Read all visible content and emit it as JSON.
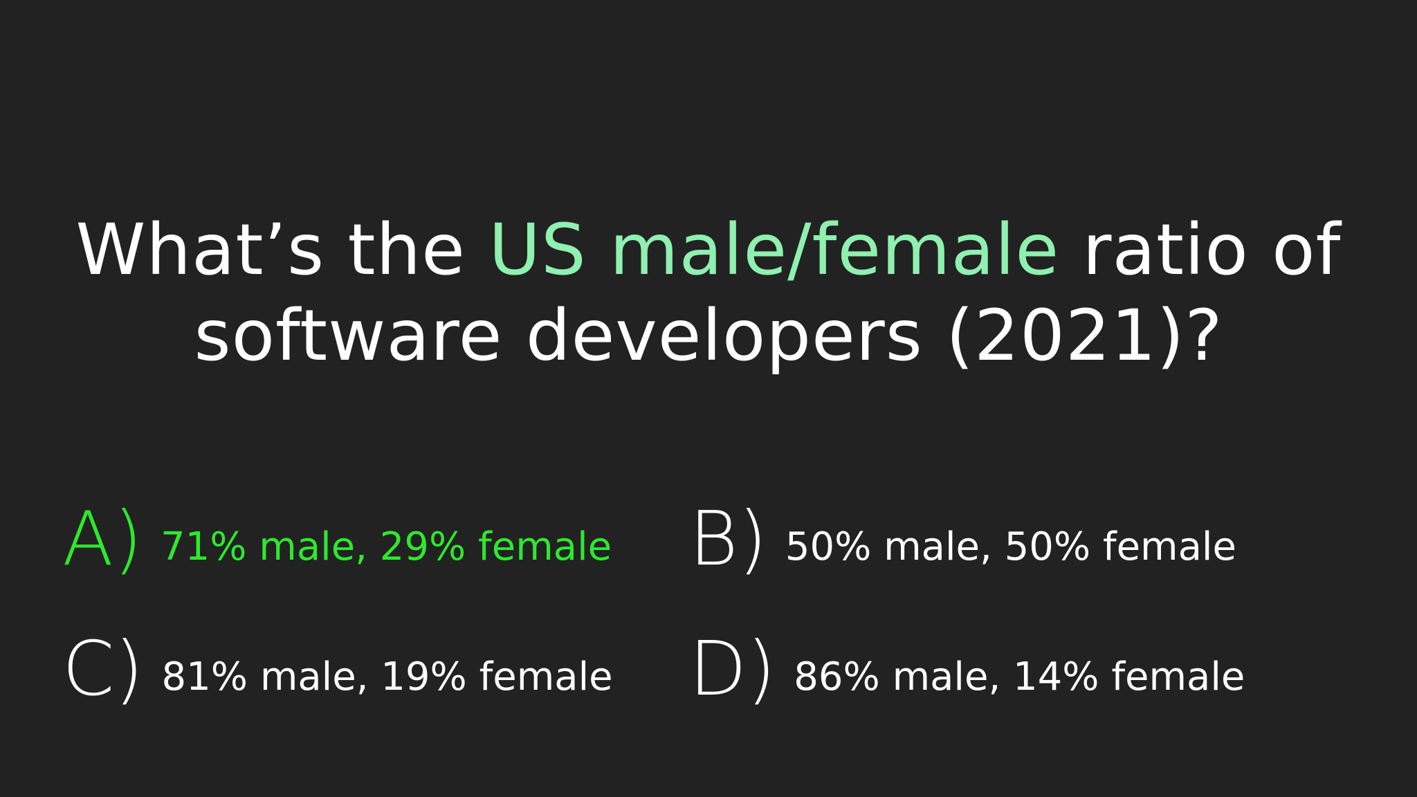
{
  "question": {
    "line1_before": "What’s the ",
    "line1_highlight": "US male/female",
    "line1_after": " ratio of",
    "line2": "software developers (2021)?"
  },
  "options": [
    {
      "letter": "A)",
      "text": "71% male, 29% female",
      "correct": true
    },
    {
      "letter": "B)",
      "text": "50% male, 50% female",
      "correct": false
    },
    {
      "letter": "C)",
      "text": "81% male, 19% female",
      "correct": false
    },
    {
      "letter": "D)",
      "text": "86% male, 14% female",
      "correct": false
    }
  ],
  "colors": {
    "background": "#222222",
    "text": "#ffffff",
    "highlight": "#8ff0b0",
    "correct": "#2ee82e"
  }
}
